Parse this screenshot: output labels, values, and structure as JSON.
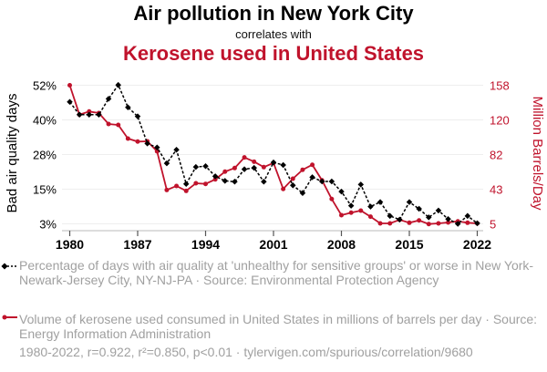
{
  "header": {
    "title": "Air pollution in New York City",
    "subtitle": "correlates with",
    "title2": "Kerosene used in United States"
  },
  "colors": {
    "air": "#000000",
    "kerosene": "#c0132c",
    "legend_text": "#a0a0a0",
    "grid": "#eeeeee"
  },
  "legend": {
    "air": "Percentage of days with air quality at 'unhealthy for sensitive groups' or worse in New York-Newark-Jersey City, NY-NJ-PA · Source: Environmental Protection Agency",
    "kerosene": "Volume of kerosene used consumed in United States in millions of barrels per day · Source: Energy Information Administration"
  },
  "footer": "1980-2022, r=0.922, r²=0.850, p<0.01 · tylervigen.com/spurious/correlation/9680",
  "chart_data": {
    "type": "line",
    "title": "Air pollution in New York City correlates with Kerosene used in United States",
    "xlabel": "",
    "ylabel": "Bad air quality days",
    "ylabel_right": "Million Barrels/Day",
    "x": [
      1980,
      1981,
      1982,
      1983,
      1984,
      1985,
      1986,
      1987,
      1988,
      1989,
      1990,
      1991,
      1992,
      1993,
      1994,
      1995,
      1996,
      1997,
      1998,
      1999,
      2000,
      2001,
      2002,
      2003,
      2004,
      2005,
      2006,
      2007,
      2008,
      2009,
      2010,
      2011,
      2012,
      2013,
      2014,
      2015,
      2016,
      2017,
      2018,
      2019,
      2020,
      2021,
      2022
    ],
    "x_ticks": [
      "1980",
      "1987",
      "1994",
      "2001",
      "2008",
      "2015",
      "2022"
    ],
    "xlim": [
      1980,
      2022
    ],
    "y_left_ticks": [
      "3%",
      "15%",
      "28%",
      "40%",
      "52%"
    ],
    "y_left_range": [
      3,
      52
    ],
    "y_right_ticks": [
      "5",
      "43",
      "82",
      "120",
      "158"
    ],
    "y_right_range": [
      5,
      158
    ],
    "grid": true,
    "legend_position": "bottom",
    "series": [
      {
        "name": "Percentage of days with air quality at 'unhealthy for sensitive groups' or worse in New York-Newark-Jersey City, NY-NJ-PA",
        "axis": "left",
        "style": "dashed-diamond",
        "values": [
          46.1,
          41.6,
          41.6,
          41.6,
          47.2,
          52.1,
          44.2,
          41.0,
          31.4,
          30.0,
          24.4,
          29.2,
          17.1,
          23.1,
          23.4,
          19.8,
          18.2,
          17.9,
          22.3,
          22.8,
          17.9,
          24.7,
          23.8,
          16.6,
          13.9,
          19.5,
          18.0,
          18.0,
          14.4,
          9.4,
          16.9,
          9.1,
          10.7,
          5.8,
          4.5,
          10.7,
          8.3,
          5.3,
          7.7,
          4.7,
          3.0,
          5.8,
          3.2
        ]
      },
      {
        "name": "Volume of kerosene used consumed in United States in millions of barrels per day",
        "axis": "right",
        "style": "solid-circle",
        "values": [
          158,
          125.6,
          129.0,
          127.3,
          115.2,
          114.2,
          99.1,
          95.8,
          96.1,
          85.0,
          42.4,
          46.8,
          41.4,
          49.8,
          49.1,
          54.1,
          62.6,
          66.6,
          78.3,
          73.6,
          67.6,
          72.2,
          43.5,
          54.8,
          64.7,
          70.2,
          53.1,
          32.4,
          14.6,
          17.3,
          19.6,
          12.9,
          5.5,
          5.5,
          9.5,
          6.2,
          8.8,
          4.8,
          5.5,
          6.5,
          7.8,
          6.2,
          5.5
        ]
      }
    ]
  }
}
